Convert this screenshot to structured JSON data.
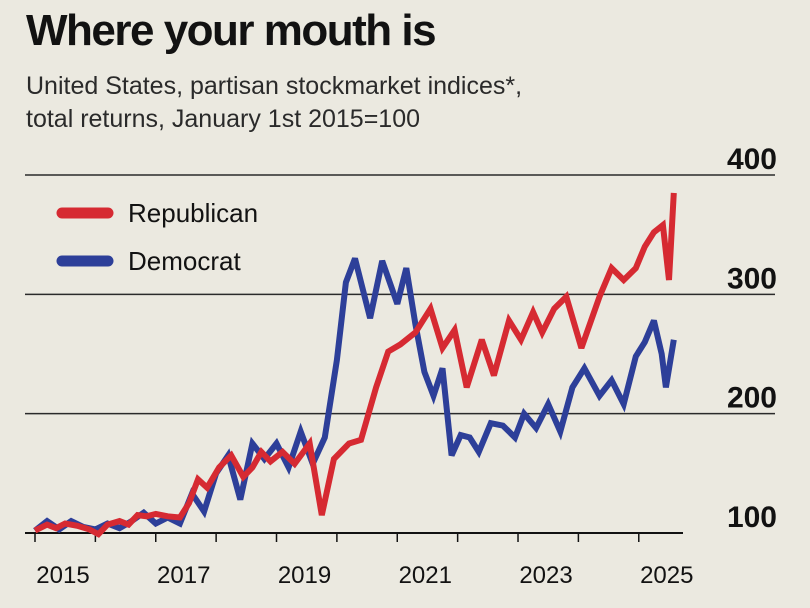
{
  "title": "Where your mouth is",
  "subtitle_line1": "United States, partisan stockmarket indices*,",
  "subtitle_line2": "total returns, January 1st 2015=100",
  "colors": {
    "republican": "#d62a32",
    "democrat": "#2d3f99",
    "background": "#ebe9e0",
    "gridline": "#2a2a2a"
  },
  "chart_data": {
    "type": "line",
    "title": "Where your mouth is",
    "xlabel": "",
    "ylabel": "",
    "xlim": [
      2015.0,
      2025.6
    ],
    "ylim": [
      100,
      400
    ],
    "yticks": [
      100,
      200,
      300,
      400
    ],
    "xticks": [
      2015,
      2017,
      2019,
      2021,
      2023,
      2025
    ],
    "legend": "top-left",
    "grid": "horizontal",
    "series": [
      {
        "name": "Republican",
        "color": "#d62a32",
        "points": [
          [
            2015.0,
            102
          ],
          [
            2015.2,
            107
          ],
          [
            2015.35,
            104
          ],
          [
            2015.5,
            108
          ],
          [
            2015.7,
            106
          ],
          [
            2015.9,
            103
          ],
          [
            2016.05,
            99
          ],
          [
            2016.2,
            107
          ],
          [
            2016.4,
            110
          ],
          [
            2016.55,
            107
          ],
          [
            2016.7,
            115
          ],
          [
            2016.85,
            114
          ],
          [
            2017.0,
            116
          ],
          [
            2017.2,
            114
          ],
          [
            2017.4,
            113
          ],
          [
            2017.55,
            125
          ],
          [
            2017.7,
            145
          ],
          [
            2017.85,
            138
          ],
          [
            2018.05,
            155
          ],
          [
            2018.25,
            165
          ],
          [
            2018.45,
            147
          ],
          [
            2018.6,
            155
          ],
          [
            2018.75,
            168
          ],
          [
            2018.9,
            160
          ],
          [
            2019.1,
            168
          ],
          [
            2019.3,
            158
          ],
          [
            2019.55,
            175
          ],
          [
            2019.75,
            115
          ],
          [
            2019.95,
            162
          ],
          [
            2020.2,
            175
          ],
          [
            2020.4,
            178
          ],
          [
            2020.65,
            222
          ],
          [
            2020.85,
            252
          ],
          [
            2021.05,
            258
          ],
          [
            2021.3,
            268
          ],
          [
            2021.55,
            288
          ],
          [
            2021.75,
            255
          ],
          [
            2021.95,
            270
          ],
          [
            2022.15,
            222
          ],
          [
            2022.4,
            262
          ],
          [
            2022.6,
            232
          ],
          [
            2022.85,
            278
          ],
          [
            2023.05,
            262
          ],
          [
            2023.25,
            285
          ],
          [
            2023.4,
            268
          ],
          [
            2023.6,
            288
          ],
          [
            2023.8,
            298
          ],
          [
            2024.05,
            255
          ],
          [
            2024.35,
            298
          ],
          [
            2024.55,
            322
          ],
          [
            2024.75,
            312
          ],
          [
            2024.95,
            322
          ],
          [
            2025.1,
            340
          ],
          [
            2025.25,
            352
          ],
          [
            2025.4,
            358
          ],
          [
            2025.5,
            312
          ],
          [
            2025.58,
            385
          ]
        ]
      },
      {
        "name": "Democrat",
        "color": "#2d3f99",
        "points": [
          [
            2015.0,
            102
          ],
          [
            2015.2,
            110
          ],
          [
            2015.4,
            103
          ],
          [
            2015.6,
            110
          ],
          [
            2015.8,
            105
          ],
          [
            2016.0,
            103
          ],
          [
            2016.2,
            108
          ],
          [
            2016.4,
            104
          ],
          [
            2016.6,
            110
          ],
          [
            2016.8,
            117
          ],
          [
            2017.0,
            108
          ],
          [
            2017.2,
            113
          ],
          [
            2017.4,
            108
          ],
          [
            2017.6,
            133
          ],
          [
            2017.8,
            118
          ],
          [
            2018.0,
            150
          ],
          [
            2018.2,
            165
          ],
          [
            2018.4,
            128
          ],
          [
            2018.6,
            175
          ],
          [
            2018.8,
            162
          ],
          [
            2019.0,
            175
          ],
          [
            2019.2,
            155
          ],
          [
            2019.4,
            185
          ],
          [
            2019.6,
            158
          ],
          [
            2019.8,
            180
          ],
          [
            2020.0,
            245
          ],
          [
            2020.15,
            310
          ],
          [
            2020.3,
            330
          ],
          [
            2020.55,
            280
          ],
          [
            2020.75,
            328
          ],
          [
            2021.0,
            292
          ],
          [
            2021.15,
            322
          ],
          [
            2021.3,
            275
          ],
          [
            2021.45,
            235
          ],
          [
            2021.6,
            215
          ],
          [
            2021.75,
            238
          ],
          [
            2021.9,
            165
          ],
          [
            2022.05,
            182
          ],
          [
            2022.2,
            180
          ],
          [
            2022.35,
            168
          ],
          [
            2022.55,
            192
          ],
          [
            2022.75,
            190
          ],
          [
            2022.95,
            180
          ],
          [
            2023.1,
            200
          ],
          [
            2023.3,
            188
          ],
          [
            2023.5,
            208
          ],
          [
            2023.7,
            185
          ],
          [
            2023.9,
            222
          ],
          [
            2024.1,
            238
          ],
          [
            2024.35,
            215
          ],
          [
            2024.55,
            228
          ],
          [
            2024.75,
            208
          ],
          [
            2024.95,
            248
          ],
          [
            2025.1,
            260
          ],
          [
            2025.25,
            278
          ],
          [
            2025.38,
            250
          ],
          [
            2025.45,
            222
          ],
          [
            2025.58,
            262
          ]
        ]
      }
    ]
  }
}
